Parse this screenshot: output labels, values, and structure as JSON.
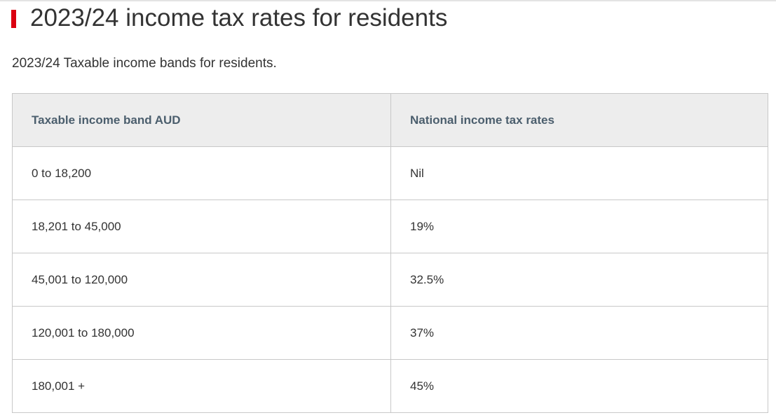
{
  "title": "2023/24 income tax rates for residents",
  "subtitle": "2023/24 Taxable income bands for residents.",
  "table": {
    "headers": [
      "Taxable income band AUD",
      "National income tax rates"
    ],
    "rows": [
      [
        "0 to 18,200",
        "Nil"
      ],
      [
        "18,201 to 45,000",
        "19%"
      ],
      [
        "45,001 to 120,000",
        "32.5%"
      ],
      [
        "120,001 to 180,000",
        "37%"
      ],
      [
        "180,001 +",
        "45%"
      ]
    ]
  },
  "colors": {
    "accent": "#db0011",
    "header_bg": "#ededed",
    "header_text": "#4b5e6d"
  }
}
